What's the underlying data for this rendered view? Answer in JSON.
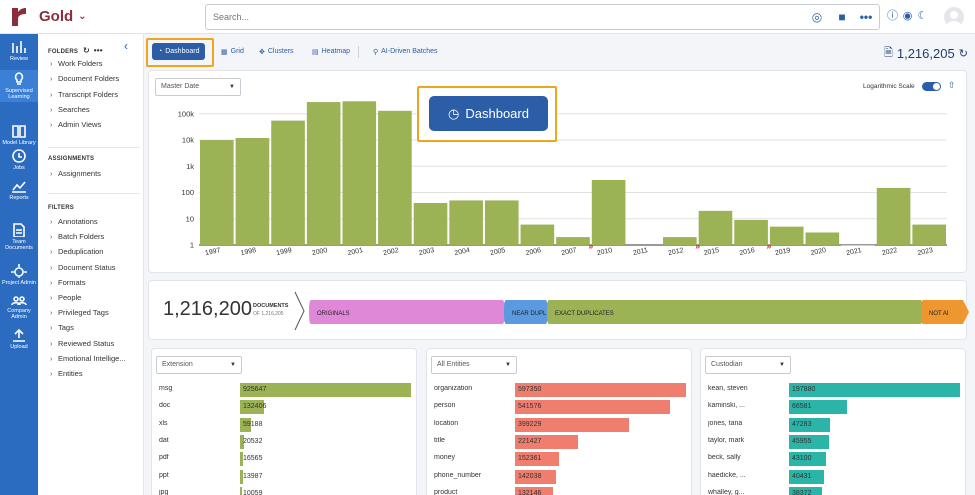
{
  "app": {
    "workspace": "Gold"
  },
  "search": {
    "placeholder": "Search..."
  },
  "leftnav": [
    {
      "label": "Review",
      "icon": "bar-chart-icon"
    },
    {
      "label": "Supervised Learning",
      "icon": "lightbulb-icon"
    },
    {
      "label": "Model Library",
      "icon": "book-icon"
    },
    {
      "label": "Jobs",
      "icon": "clock-icon"
    },
    {
      "label": "Reports",
      "icon": "line-chart-icon"
    },
    {
      "label": "Team Documents",
      "icon": "document-icon"
    },
    {
      "label": "Project Admin",
      "icon": "gear-icon"
    },
    {
      "label": "Company Admin",
      "icon": "people-icon"
    },
    {
      "label": "Upload",
      "icon": "upload-icon"
    }
  ],
  "sidebar": {
    "folders_title": "FOLDERS",
    "folders": [
      "Work Folders",
      "Document Folders",
      "Transcript Folders",
      "Searches",
      "Admin Views"
    ],
    "assignments_title": "ASSIGNMENTS",
    "assignments": [
      "Assignments"
    ],
    "filters_title": "FILTERS",
    "filters": [
      "Annotations",
      "Batch Folders",
      "Deduplication",
      "Document Status",
      "Formats",
      "People",
      "Privileged Tags",
      "Tags",
      "Reviewed Status",
      "Emotional Intellige...",
      "Entities"
    ]
  },
  "tabs": [
    "Dashboard",
    "Grid",
    "Clusters",
    "Heatmap",
    "AI-Driven Batches"
  ],
  "doc_count": "1,216,205",
  "chart": {
    "select": "Master Date",
    "log_label": "Logarithmic Scale",
    "callout": "Dashboard"
  },
  "chart_data": {
    "type": "bar",
    "log_scale": true,
    "ylim": [
      1,
      400000
    ],
    "y_ticks": [
      "1",
      "10",
      "100",
      "1k",
      "10k",
      "100k"
    ],
    "categories": [
      "1997",
      "1998",
      "1999",
      "2000",
      "2001",
      "2002",
      "2003",
      "2004",
      "2005",
      "2006",
      "2007",
      "2010",
      "2011",
      "2012",
      "2015",
      "2016",
      "2019",
      "2020",
      "2021",
      "2022",
      "2023"
    ],
    "values": [
      10000,
      12000,
      55000,
      280000,
      300000,
      130000,
      40,
      50,
      50,
      6,
      2,
      300,
      0,
      2,
      20,
      9,
      5,
      3,
      1,
      150,
      6
    ],
    "breaks_after": [
      "2007",
      "2012",
      "2016"
    ]
  },
  "documents": {
    "count": "1,216,200",
    "label": "DOCUMENTS",
    "of": "OF 1,216,205",
    "segments": [
      {
        "label": "ORIGINALS",
        "color": "#e088d8"
      },
      {
        "label": "NEAR DUPL",
        "color": "#5b9ae0"
      },
      {
        "label": "EXACT DUPLICATES",
        "color": "#9bb255"
      },
      {
        "label": "NOT AI",
        "color": "#ee9630"
      }
    ]
  },
  "panels": [
    {
      "select": "Extension",
      "color": "#9bb255",
      "max": 925647,
      "rows": [
        [
          "msg",
          "925647"
        ],
        [
          "doc",
          "132406"
        ],
        [
          "xls",
          "59188"
        ],
        [
          "dat",
          "20532"
        ],
        [
          "pdf",
          "16565"
        ],
        [
          "ppt",
          "13987"
        ],
        [
          "jpg",
          "10059"
        ]
      ]
    },
    {
      "select": "All Entities",
      "color": "#f07e6e",
      "max": 597350,
      "rows": [
        [
          "organization",
          "597350"
        ],
        [
          "person",
          "541576"
        ],
        [
          "location",
          "399229"
        ],
        [
          "title",
          "221427"
        ],
        [
          "money",
          "152361"
        ],
        [
          "phone_number",
          "142038"
        ],
        [
          "product",
          "132146"
        ]
      ]
    },
    {
      "select": "Custodian",
      "color": "#2bb5a8",
      "max": 197880,
      "rows": [
        [
          "kean, steven",
          "197880"
        ],
        [
          "kaminski, ...",
          "66581"
        ],
        [
          "jones, tana",
          "47283"
        ],
        [
          "taylor, mark",
          "45955"
        ],
        [
          "beck, sally",
          "43100"
        ],
        [
          "haedicke, ...",
          "40431"
        ],
        [
          "whalley, g...",
          "38372"
        ]
      ]
    }
  ]
}
